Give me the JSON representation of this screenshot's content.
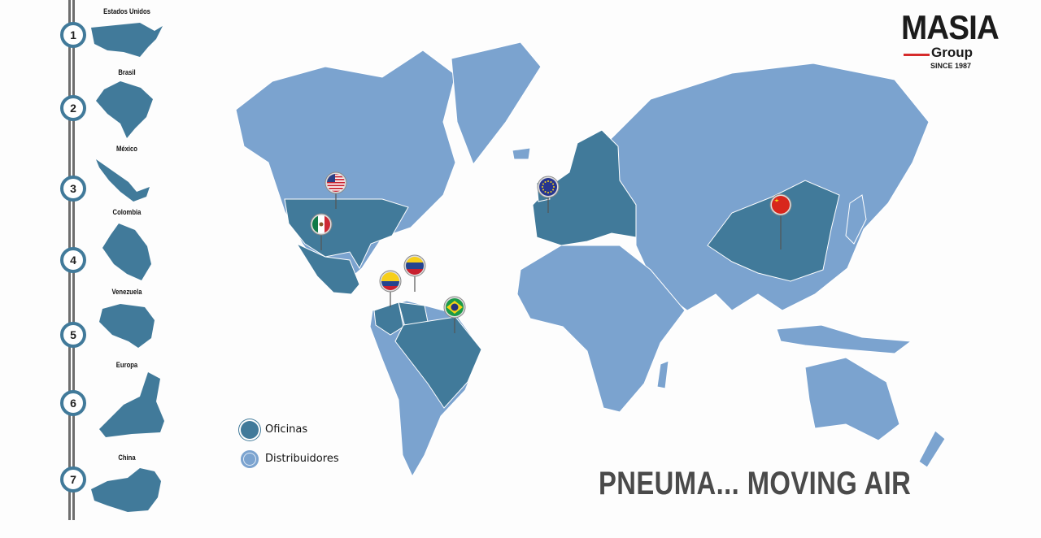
{
  "brand": {
    "name": "MASIA",
    "sub": "Group",
    "since": "SINCE 1987",
    "accent_color": "#d62b2b"
  },
  "slogan": "PNEUMA... MOVING AIR",
  "colors": {
    "offices": "#417a9a",
    "distributors": "#7ba3cf"
  },
  "legend": [
    {
      "label": "Oficinas",
      "color": "#417a9a"
    },
    {
      "label": "Distribuidores",
      "color": "#7ba3cf"
    }
  ],
  "locations": [
    {
      "number": "1",
      "name": "Estados Unidos",
      "flag": "usa-flag"
    },
    {
      "number": "2",
      "name": "Brasil",
      "flag": "brazil-flag"
    },
    {
      "number": "3",
      "name": "México",
      "flag": "mexico-flag"
    },
    {
      "number": "4",
      "name": "Colombia",
      "flag": "colombia-flag"
    },
    {
      "number": "5",
      "name": "Venezuela",
      "flag": "venezuela-flag"
    },
    {
      "number": "6",
      "name": "Europa",
      "flag": "eu-flag"
    },
    {
      "number": "7",
      "name": "China",
      "flag": "china-flag"
    }
  ]
}
